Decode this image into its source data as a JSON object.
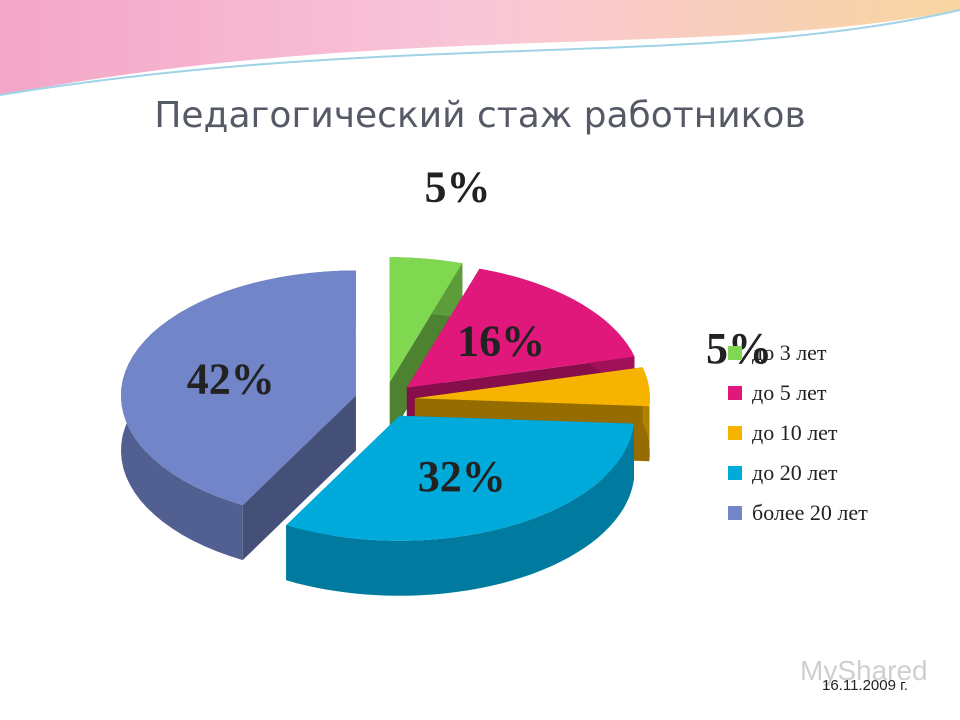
{
  "chart_data": {
    "type": "pie",
    "title": "Педагогический стаж работников",
    "categories": [
      "до 3 лет",
      "до 5 лет",
      "до 10 лет",
      "до 20 лет",
      "более 20 лет"
    ],
    "values": [
      5,
      16,
      5,
      32,
      42
    ],
    "value_labels": [
      "5%",
      "16%",
      "5%",
      "32%",
      "42%"
    ],
    "colors": [
      "#80d850",
      "#e0187c",
      "#f6b400",
      "#00aadb",
      "#7185c8"
    ],
    "legend": "right"
  },
  "footer": {
    "date": "16.11.2009 г.",
    "watermark": "MyShared"
  }
}
